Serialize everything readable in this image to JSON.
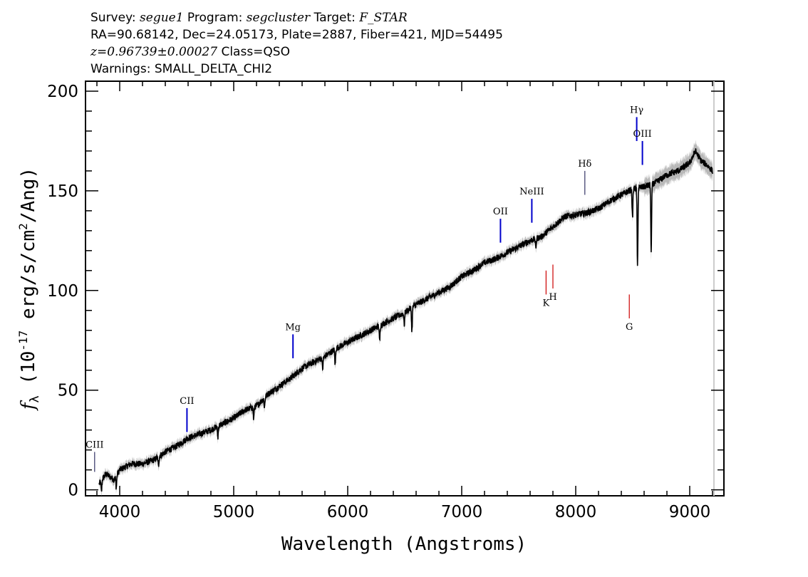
{
  "header": {
    "line1": [
      {
        "text": "Survey: ",
        "style": "normal"
      },
      {
        "text": "segue1",
        "style": "italic"
      },
      {
        "text": " Program: ",
        "style": "normal"
      },
      {
        "text": "segcluster",
        "style": "italic"
      },
      {
        "text": " Target: ",
        "style": "normal"
      },
      {
        "text": "F_STAR",
        "style": "italic"
      }
    ],
    "line2": "RA=90.68142, Dec=24.05173, Plate=2887, Fiber=421, MJD=54495",
    "line3": [
      {
        "text": "z=0.96739±0.00027",
        "style": "italic"
      },
      {
        "text": " Class=QSO",
        "style": "normal"
      }
    ],
    "line4": "Warnings: SMALL_DELTA_CHI2"
  },
  "chart_data": {
    "type": "line",
    "xlabel": "Wavelength (Angstroms)",
    "ylabel": "f_λ (10^-17 erg/s/cm^2/Ang)",
    "xlim": [
      3700,
      9300
    ],
    "ylim": [
      -3,
      205
    ],
    "x_ticks": [
      4000,
      5000,
      6000,
      7000,
      8000,
      9000
    ],
    "y_ticks": [
      0,
      50,
      100,
      150,
      200
    ],
    "grid": false,
    "colors": {
      "spectrum": "#000000",
      "error_band": "#b8b8b8",
      "emission": "#0000cc",
      "absorption": "#cc0000",
      "weak": "#333366"
    },
    "series": [
      {
        "name": "",
        "x": [
          3820,
          3880,
          3950,
          4000,
          4100,
          4200,
          4300,
          4400,
          4500,
          4600,
          4700,
          4800,
          4860,
          4900,
          5000,
          5100,
          5200,
          5300,
          5400,
          5500,
          5600,
          5700,
          5800,
          5900,
          6000,
          6100,
          6200,
          6300,
          6400,
          6500,
          6600,
          6700,
          6800,
          6900,
          7000,
          7100,
          7200,
          7300,
          7400,
          7500,
          7600,
          7700,
          7800,
          7900,
          8000,
          8100,
          8200,
          8300,
          8400,
          8500,
          8600,
          8700,
          8800,
          8900,
          9000,
          9050,
          9100,
          9150,
          9200
        ],
        "y": [
          3,
          8,
          5,
          10,
          13,
          13,
          15,
          19,
          22,
          26,
          28,
          30,
          32,
          33,
          36,
          40,
          42,
          48,
          52,
          56,
          61,
          64,
          67,
          71,
          74,
          77,
          80,
          83,
          86,
          89,
          93,
          96,
          99,
          102,
          107,
          110,
          114,
          116,
          119,
          122,
          125,
          127,
          132,
          137,
          138,
          139,
          141,
          145,
          148,
          151,
          152,
          154,
          158,
          160,
          164,
          170,
          165,
          163,
          160
        ]
      }
    ],
    "absorption_dips": [
      {
        "x": 3840,
        "depth": 6
      },
      {
        "x": 3970,
        "depth": 6
      },
      {
        "x": 4340,
        "depth": 5
      },
      {
        "x": 4861,
        "depth": 6
      },
      {
        "x": 5175,
        "depth": 6
      },
      {
        "x": 5270,
        "depth": 5
      },
      {
        "x": 5780,
        "depth": 6
      },
      {
        "x": 5890,
        "depth": 8
      },
      {
        "x": 6280,
        "depth": 8
      },
      {
        "x": 6496,
        "depth": 6
      },
      {
        "x": 6563,
        "depth": 12
      },
      {
        "x": 7650,
        "depth": 5
      },
      {
        "x": 8498,
        "depth": 15
      },
      {
        "x": 8542,
        "depth": 40
      },
      {
        "x": 8662,
        "depth": 35
      }
    ],
    "spectral_lines": [
      {
        "label": "CIII",
        "x": 3780,
        "y_bottom": 9,
        "y_top": 19,
        "color": "#333366",
        "label_pos": "above"
      },
      {
        "label": "CII",
        "x": 4590,
        "y_bottom": 29,
        "y_top": 41,
        "color": "#0000cc",
        "label_pos": "above"
      },
      {
        "label": "Mg",
        "x": 5520,
        "y_bottom": 66,
        "y_top": 78,
        "color": "#0000cc",
        "label_pos": "above"
      },
      {
        "label": "OII",
        "x": 7340,
        "y_bottom": 124,
        "y_top": 136,
        "color": "#0000cc",
        "label_pos": "above"
      },
      {
        "label": "NeIII",
        "x": 7615,
        "y_bottom": 134,
        "y_top": 146,
        "color": "#0000cc",
        "label_pos": "above"
      },
      {
        "label": "Hδ",
        "x": 8080,
        "y_bottom": 148,
        "y_top": 160,
        "color": "#333366",
        "label_pos": "above"
      },
      {
        "label": "Hγ",
        "x": 8535,
        "y_bottom": 175,
        "y_top": 187,
        "color": "#0000cc",
        "label_pos": "above"
      },
      {
        "label": "OIII",
        "x": 8585,
        "y_bottom": 163,
        "y_top": 175,
        "color": "#0000cc",
        "label_pos": "above"
      },
      {
        "label": "K",
        "x": 7740,
        "y_bottom": 98,
        "y_top": 110,
        "color": "#cc0000",
        "label_pos": "below"
      },
      {
        "label": "H",
        "x": 7800,
        "y_bottom": 101,
        "y_top": 113,
        "color": "#cc0000",
        "label_pos": "below"
      },
      {
        "label": "G",
        "x": 8470,
        "y_bottom": 86,
        "y_top": 98,
        "color": "#cc0000",
        "label_pos": "below"
      }
    ]
  }
}
